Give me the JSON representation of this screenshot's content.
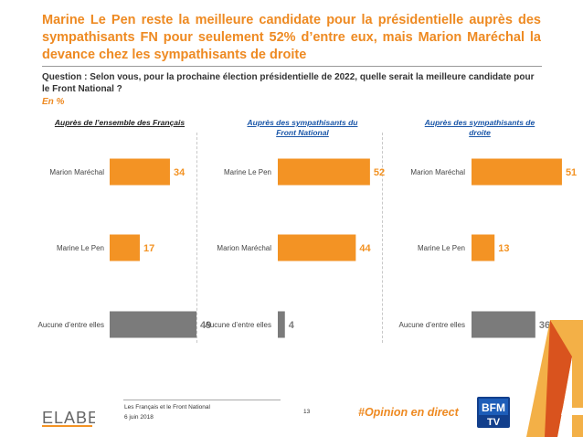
{
  "title": "Marine Le Pen reste la meilleure candidate pour la présidentielle auprès des sympathisants FN pour seulement 52% d’entre eux, mais Marion Maréchal la devance chez les sympathisants de droite",
  "question": "Question : Selon vous, pour la prochaine élection présidentielle de 2022, quelle serait la meilleure candidate pour le Front National ?",
  "unit": "En %",
  "colors": {
    "orange": "#f39324",
    "gray": "#7b7b7b",
    "accent": "#ee8a22",
    "blue_header": "#1a56a8"
  },
  "chart_data": [
    {
      "type": "bar",
      "orientation": "horizontal",
      "title": "Auprès de l’ensemble des Français",
      "categories": [
        "Marion Maréchal",
        "Marine Le Pen",
        "Aucune d’entre elles"
      ],
      "values": [
        34,
        17,
        49
      ],
      "colors": [
        "orange",
        "orange",
        "gray"
      ],
      "xlim": [
        0,
        55
      ]
    },
    {
      "type": "bar",
      "orientation": "horizontal",
      "title": "Auprès des sympathisants du Front National",
      "categories": [
        "Marine Le Pen",
        "Marion Maréchal",
        "Aucune d’entre elles"
      ],
      "values": [
        52,
        44,
        4
      ],
      "colors": [
        "orange",
        "orange",
        "gray"
      ],
      "xlim": [
        0,
        55
      ]
    },
    {
      "type": "bar",
      "orientation": "horizontal",
      "title": "Auprès des sympathisants de droite",
      "categories": [
        "Marion Maréchal",
        "Marine Le Pen",
        "Aucune d’entre elles"
      ],
      "values": [
        51,
        13,
        36
      ],
      "colors": [
        "orange",
        "orange",
        "gray"
      ],
      "xlim": [
        0,
        55
      ]
    }
  ],
  "footer": {
    "logo_text": "ELABE",
    "study": "Les Français et le Front National",
    "date": "6 juin 2018",
    "page": "13",
    "hashtag": "#Opinion en direct",
    "tv_logo_top": "BFM",
    "tv_logo_bottom": "TV"
  }
}
